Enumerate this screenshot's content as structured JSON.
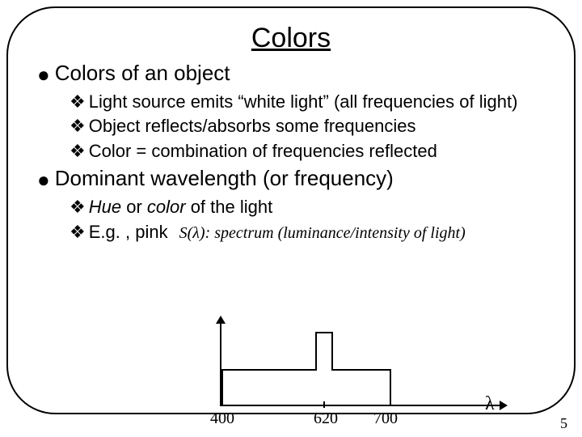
{
  "title": "Colors",
  "section1": {
    "heading": "Colors of an object",
    "items": [
      "Light source emits “white light” (all frequencies of light)",
      "Object reflects/absorbs some frequencies",
      "Color = combination of frequencies reflected"
    ]
  },
  "section2": {
    "heading": "Dominant wavelength (or frequency)",
    "item1_prefix": "Hue",
    "item1_mid": " or ",
    "item1_italic2": "color",
    "item1_suffix": " of the light",
    "item2": "E.g. , pink",
    "spectrum_note_prefix": "S(",
    "spectrum_note_lambda": "λ",
    "spectrum_note_suffix": "): spectrum (luminance/intensity of light)"
  },
  "graph": {
    "type": "spectrum-line",
    "x_axis_label": "λ",
    "x_ticks": [
      "400",
      "620",
      "700"
    ],
    "baseline_range": [
      400,
      700
    ],
    "peak_position": 620,
    "line_color": "#000000",
    "background_color": "#ffffff",
    "axis_color": "#000000",
    "font_family": "Times New Roman",
    "tick_fontsize": 20
  },
  "bullets": {
    "level1": "●",
    "level2": "❖"
  },
  "page_number": "5",
  "colors": {
    "text": "#000000",
    "border": "#000000",
    "background": "#ffffff"
  }
}
